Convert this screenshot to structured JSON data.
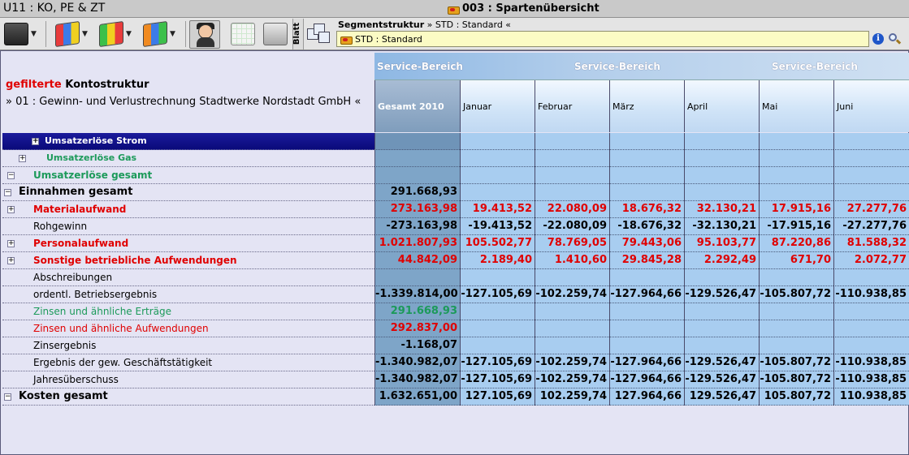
{
  "window": {
    "left_title": "U11 : KO, PE & ZT",
    "center_title": "003 : Spartenübersicht"
  },
  "toolbar": {
    "blatt_label": "Blatt",
    "segment_path_prefix": "Segmentstruktur",
    "segment_path_rest": " » STD : Standard «",
    "segment_value": "STD : Standard"
  },
  "left_header": {
    "filter_word": "gefilterte",
    "title_rest": " Kontostruktur",
    "subtitle": "» 01 : Gewinn- und Verlustrechnung Stadtwerke Nordstadt GmbH «"
  },
  "service_band": [
    "Service-Bereich",
    "Service-Bereich",
    "Service-Bereich"
  ],
  "columns": [
    "Gesamt 2010",
    "Januar",
    "Februar",
    "März",
    "April",
    "Mai",
    "Juni"
  ],
  "rows": [
    {
      "label": "Umsatzerlöse Strom",
      "values": [
        "",
        "",
        "",
        "",
        "",
        "",
        ""
      ]
    },
    {
      "label": "Umsatzerlöse Gas",
      "values": [
        "",
        "",
        "",
        "",
        "",
        "",
        ""
      ]
    },
    {
      "label": "Umsatzerlöse  gesamt",
      "values": [
        "",
        "",
        "",
        "",
        "",
        "",
        ""
      ]
    },
    {
      "label": "Einnahmen gesamt",
      "values": [
        "291.668,93",
        "",
        "",
        "",
        "",
        "",
        ""
      ]
    },
    {
      "label": "Materialaufwand",
      "values": [
        "273.163,98",
        "19.413,52",
        "22.080,09",
        "18.676,32",
        "32.130,21",
        "17.915,16",
        "27.277,76"
      ]
    },
    {
      "label": "Rohgewinn",
      "values": [
        "-273.163,98",
        "-19.413,52",
        "-22.080,09",
        "-18.676,32",
        "-32.130,21",
        "-17.915,16",
        "-27.277,76"
      ]
    },
    {
      "label": "Personalaufwand",
      "values": [
        "1.021.807,93",
        "105.502,77",
        "78.769,05",
        "79.443,06",
        "95.103,77",
        "87.220,86",
        "81.588,32"
      ]
    },
    {
      "label": "Sonstige  betriebliche  Aufwendungen",
      "values": [
        "44.842,09",
        "2.189,40",
        "1.410,60",
        "29.845,28",
        "2.292,49",
        "671,70",
        "2.072,77"
      ]
    },
    {
      "label": "Abschreibungen",
      "values": [
        "",
        "",
        "",
        "",
        "",
        "",
        ""
      ]
    },
    {
      "label": "ordentl. Betriebsergebnis",
      "values": [
        "-1.339.814,00",
        "-127.105,69",
        "-102.259,74",
        "-127.964,66",
        "-129.526,47",
        "-105.807,72",
        "-110.938,85"
      ]
    },
    {
      "label": "Zinsen und ähnliche Erträge",
      "values": [
        "291.668,93",
        "",
        "",
        "",
        "",
        "",
        ""
      ]
    },
    {
      "label": "Zinsen und ähnliche Aufwendungen",
      "values": [
        "292.837,00",
        "",
        "",
        "",
        "",
        "",
        ""
      ]
    },
    {
      "label": "Zinsergebnis",
      "values": [
        "-1.168,07",
        "",
        "",
        "",
        "",
        "",
        ""
      ]
    },
    {
      "label": "Ergebnis der gew. Geschäftstätigkeit",
      "values": [
        "-1.340.982,07",
        "-127.105,69",
        "-102.259,74",
        "-127.964,66",
        "-129.526,47",
        "-105.807,72",
        "-110.938,85"
      ]
    },
    {
      "label": "Jahresüberschuss",
      "values": [
        "-1.340.982,07",
        "-127.105,69",
        "-102.259,74",
        "-127.964,66",
        "-129.526,47",
        "-105.807,72",
        "-110.938,85"
      ]
    },
    {
      "label": "Kosten gesamt",
      "values": [
        "1.632.651,00",
        "127.105,69",
        "102.259,74",
        "127.964,66",
        "129.526,47",
        "105.807,72",
        "110.938,85"
      ]
    }
  ],
  "colors": {
    "negative_cost": "#e00000",
    "income": "#1c9a5a",
    "selected_row": "#0a0a7a",
    "total_column": "#7ea5c8",
    "data_cell": "#a8cdf0"
  }
}
